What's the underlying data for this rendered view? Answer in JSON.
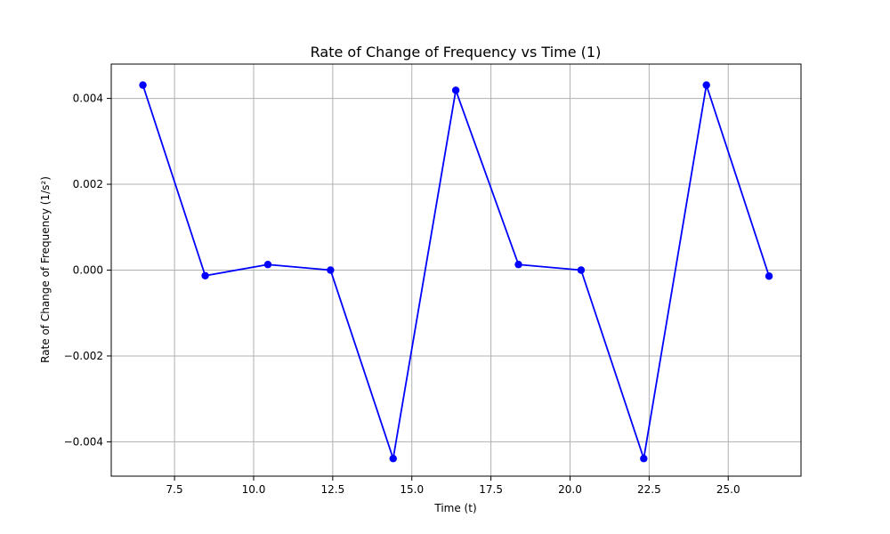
{
  "chart_data": {
    "type": "line",
    "title": "Rate of Change of Frequency vs Time (1)",
    "xlabel": "Time (t)",
    "ylabel": "Rate of Change of Frequency (1/s²)",
    "xlim": [
      5.5,
      27.3
    ],
    "ylim": [
      -0.0048,
      0.0048
    ],
    "xticks": [
      7.5,
      10.0,
      12.5,
      15.0,
      17.5,
      20.0,
      22.5,
      25.0
    ],
    "xtick_labels": [
      "7.5",
      "10.0",
      "12.5",
      "15.0",
      "17.5",
      "20.0",
      "22.5",
      "25.0"
    ],
    "yticks": [
      -0.004,
      -0.002,
      0.0,
      0.002,
      0.004
    ],
    "ytick_labels": [
      "−0.004",
      "−0.002",
      "0.000",
      "0.002",
      "0.004"
    ],
    "grid": true,
    "series": [
      {
        "color": "#0000ff",
        "marker": "circle",
        "x": [
          6.5,
          8.47,
          10.45,
          12.43,
          14.41,
          16.39,
          18.37,
          20.35,
          22.33,
          24.31,
          26.29
        ],
        "y": [
          0.00431,
          -0.00013,
          0.00013,
          0.0,
          -0.00439,
          0.00419,
          0.00013,
          0.0,
          -0.00439,
          0.00431,
          -0.00014
        ]
      }
    ]
  }
}
